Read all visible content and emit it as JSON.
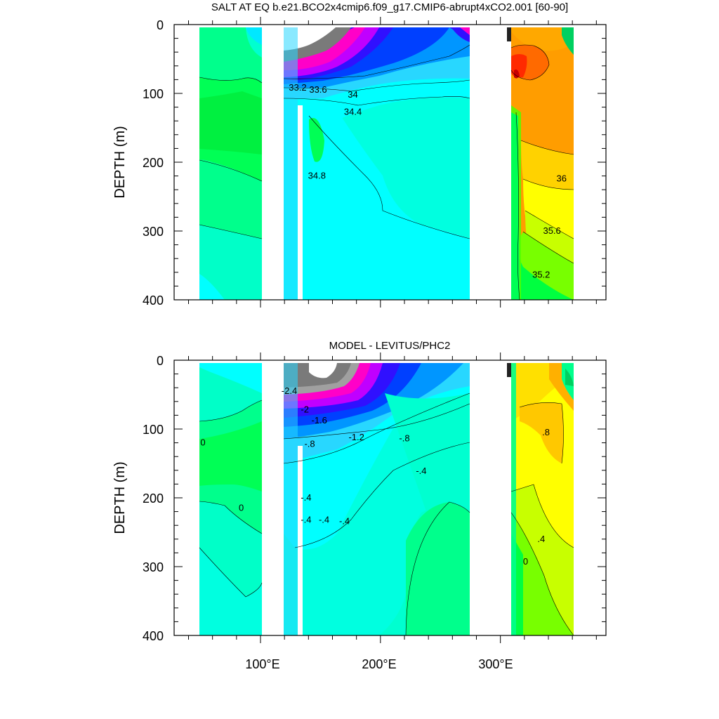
{
  "figure": {
    "panels": [
      {
        "title": "SALT AT EQ b.e21.BCO2x4cmip6.f09_g17.CMIP6-abrupt4xCO2.001 [60-90]",
        "ylabel": "DEPTH (m)",
        "yticks": [
          "0",
          "100",
          "200",
          "300",
          "400"
        ],
        "xticks": [
          "100°E",
          "200°E",
          "300°E"
        ]
      },
      {
        "title": "MODEL - LEVITUS/PHC2",
        "ylabel": "DEPTH (m)",
        "yticks": [
          "0",
          "100",
          "200",
          "300",
          "400"
        ],
        "xticks": [
          "100°E",
          "200°E",
          "300°E"
        ]
      }
    ]
  },
  "chart_data": [
    {
      "type": "heatmap",
      "title": "SALT AT EQ b.e21.BCO2x4cmip6.f09_g17.CMIP6-abrupt4xCO2.001 [60-90]",
      "xlabel": "",
      "ylabel": "DEPTH (m)",
      "xlim": [
        28,
        388
      ],
      "ylim": [
        400,
        0
      ],
      "xticks": [
        100,
        200,
        300
      ],
      "yticks": [
        0,
        100,
        200,
        300,
        400
      ],
      "contour_labels": [
        {
          "text": "33.2",
          "lon": 131,
          "depth": 92
        },
        {
          "text": "33.6",
          "lon": 148,
          "depth": 95
        },
        {
          "text": "34",
          "lon": 177,
          "depth": 102
        },
        {
          "text": "34.4",
          "lon": 177,
          "depth": 127
        },
        {
          "text": "34.8",
          "lon": 147,
          "depth": 220
        },
        {
          "text": "36",
          "lon": 351,
          "depth": 224
        },
        {
          "text": "35.6",
          "lon": 343,
          "depth": 300
        },
        {
          "text": "35.2",
          "lon": 334,
          "depth": 364
        }
      ],
      "fields": [
        {
          "lon": [
            45,
            97
          ],
          "salinity": "34.8-35.0"
        },
        {
          "lon": [
            118,
            278
          ],
          "salinity": "33.0-34.8, fresher near surface in west"
        },
        {
          "lon": [
            313,
            367
          ],
          "salinity": "35.2-36.6, saltiest near 70 m"
        }
      ]
    },
    {
      "type": "heatmap",
      "title": "MODEL - LEVITUS/PHC2",
      "xlabel": "",
      "ylabel": "DEPTH (m)",
      "xlim": [
        28,
        388
      ],
      "ylim": [
        400,
        0
      ],
      "xticks": [
        100,
        200,
        300
      ],
      "yticks": [
        0,
        100,
        200,
        300,
        400
      ],
      "contour_labels": [
        {
          "text": "0",
          "lon": 52,
          "depth": 120
        },
        {
          "text": "0",
          "lon": 84,
          "depth": 215
        },
        {
          "text": "-2.4",
          "lon": 124,
          "depth": 45
        },
        {
          "text": "-2",
          "lon": 137,
          "depth": 72
        },
        {
          "text": "-1.6",
          "lon": 149,
          "depth": 88
        },
        {
          "text": "-1.2",
          "lon": 180,
          "depth": 112
        },
        {
          "text": "-.8",
          "lon": 141,
          "depth": 122
        },
        {
          "text": "-.8",
          "lon": 220,
          "depth": 114
        },
        {
          "text": "-.4",
          "lon": 138,
          "depth": 200
        },
        {
          "text": "-.4",
          "lon": 138,
          "depth": 232
        },
        {
          "text": "-.4",
          "lon": 153,
          "depth": 232
        },
        {
          "text": "-.4",
          "lon": 170,
          "depth": 234
        },
        {
          "text": "-.4",
          "lon": 234,
          "depth": 161
        },
        {
          "text": ".8",
          "lon": 338,
          "depth": 105
        },
        {
          "text": ".4",
          "lon": 334,
          "depth": 260
        },
        {
          "text": "0",
          "lon": 321,
          "depth": 293
        }
      ],
      "fields": [
        {
          "lon": [
            45,
            97
          ],
          "anomaly": "0 to 0.4"
        },
        {
          "lon": [
            118,
            278
          ],
          "anomaly": "-3.0 to 0, strongest freshening at the surface in the west"
        },
        {
          "lon": [
            313,
            367
          ],
          "anomaly": "0 to 1.4, saltier"
        }
      ]
    }
  ]
}
